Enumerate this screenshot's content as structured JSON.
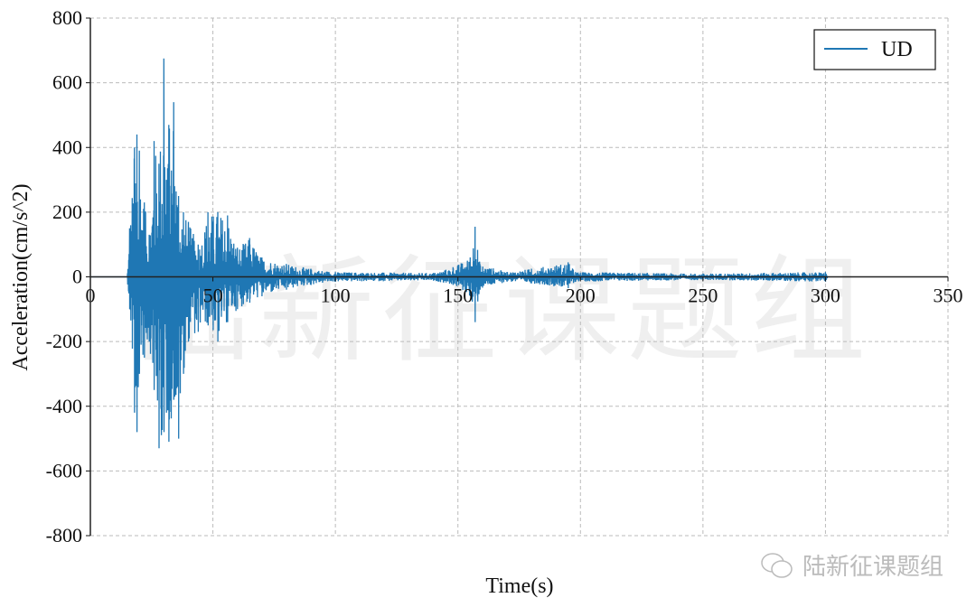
{
  "chart_data": {
    "type": "line",
    "title": "",
    "xlabel": "Time(s)",
    "ylabel": "Acceleration(cm/s^2)",
    "xlim": [
      0,
      350
    ],
    "ylim": [
      -800,
      800
    ],
    "xticks": [
      "0",
      "50",
      "100",
      "150",
      "200",
      "250",
      "300",
      "350"
    ],
    "yticks": [
      "800",
      "600",
      "400",
      "200",
      "0",
      "-200",
      "-400",
      "-600",
      "-800"
    ],
    "grid": true,
    "legend_position": "top-right",
    "series": [
      {
        "name": "UD",
        "color": "#1f77b4",
        "envelope": {
          "t": [
            15,
            16,
            18,
            19,
            20,
            22,
            24,
            26,
            28,
            30,
            31,
            32,
            34,
            36,
            38,
            40,
            44,
            48,
            52,
            56,
            60,
            65,
            70,
            80,
            90,
            100,
            140,
            148,
            155,
            157,
            159,
            170,
            180,
            195,
            198,
            250,
            300,
            301
          ],
          "max": [
            0,
            150,
            400,
            440,
            390,
            230,
            130,
            420,
            350,
            675,
            300,
            470,
            540,
            250,
            200,
            170,
            100,
            200,
            200,
            190,
            90,
            120,
            60,
            40,
            25,
            15,
            12,
            30,
            60,
            155,
            40,
            15,
            25,
            45,
            15,
            10,
            15,
            0
          ],
          "min": [
            0,
            -100,
            -420,
            -480,
            -300,
            -250,
            -200,
            -350,
            -530,
            -480,
            -420,
            -510,
            -380,
            -500,
            -300,
            -200,
            -170,
            -150,
            -200,
            -140,
            -100,
            -80,
            -60,
            -40,
            -25,
            -15,
            -12,
            -25,
            -60,
            -140,
            -40,
            -15,
            -20,
            -35,
            -15,
            -10,
            -15,
            0
          ]
        }
      }
    ]
  },
  "watermark": "陆新征课题组",
  "brand": {
    "icon": "wechat-icon",
    "text": "陆新征课题组"
  }
}
